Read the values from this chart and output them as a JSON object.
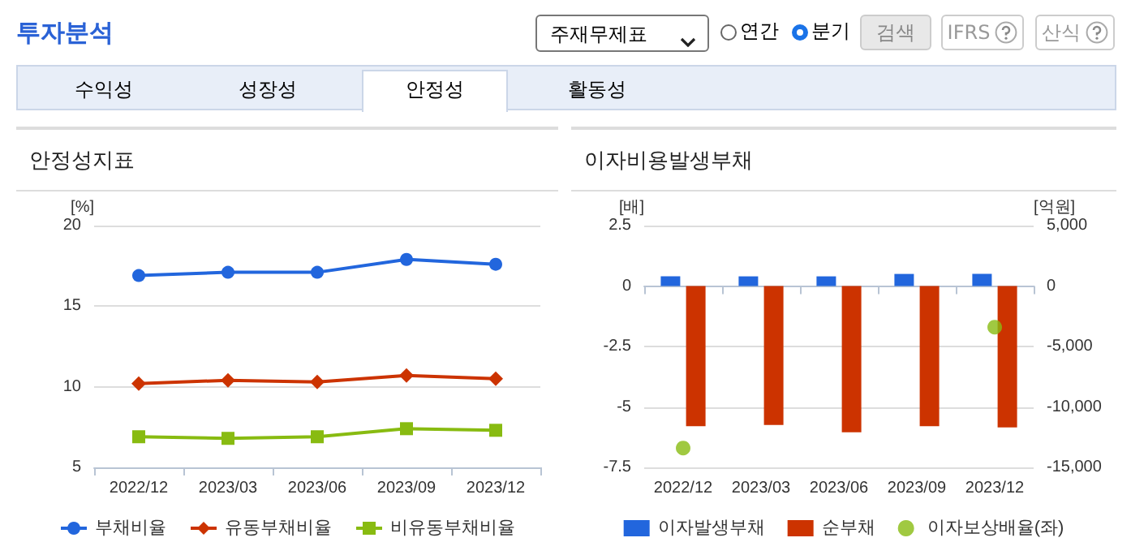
{
  "chart_data": [
    {
      "type": "other",
      "title": "투자분석",
      "annotations": [
        "주재무제표",
        "연간",
        "분기",
        "검색",
        "IFRS",
        "산식",
        "수익성",
        "성장성",
        "안정성",
        "활동성"
      ]
    },
    {
      "type": "line",
      "title": "안정성지표",
      "ylabel": "[%]",
      "categories": [
        "2022/12",
        "2023/03",
        "2023/06",
        "2023/09",
        "2023/12"
      ],
      "ylim": [
        5,
        20
      ],
      "yticks": [
        5,
        10,
        15,
        20
      ],
      "grid": "y",
      "legend": "bottom",
      "series": [
        {
          "name": "부채비율",
          "color": "#2266dd",
          "marker": "circle",
          "values": [
            16.9,
            17.1,
            17.1,
            17.9,
            17.6
          ]
        },
        {
          "name": "유동부채비율",
          "color": "#cc3300",
          "marker": "diamond",
          "values": [
            10.2,
            10.4,
            10.3,
            10.7,
            10.5
          ]
        },
        {
          "name": "비유동부채비율",
          "color": "#88bb11",
          "marker": "square",
          "values": [
            6.9,
            6.8,
            6.9,
            7.4,
            7.3
          ]
        }
      ]
    },
    {
      "type": "bar",
      "title": "이자비용발생부채",
      "ylabel": "[배]",
      "y2label": "[억원]",
      "categories": [
        "2022/12",
        "2023/03",
        "2023/06",
        "2023/09",
        "2023/12"
      ],
      "ylim": [
        -7.5,
        2.5
      ],
      "yticks": [
        -7.5,
        -5,
        -2.5,
        0,
        2.5
      ],
      "y2lim": [
        -15000,
        5000
      ],
      "y2ticks": [
        {
          "value": -15000,
          "label": "-15,000"
        },
        {
          "value": -10000,
          "label": "-10,000"
        },
        {
          "value": -5000,
          "label": "-5,000"
        },
        {
          "value": 0,
          "label": "0"
        },
        {
          "value": 5000,
          "label": "5,000"
        }
      ],
      "grid": "y",
      "legend": "bottom",
      "series": [
        {
          "name": "이자발생부채",
          "color": "#2266dd",
          "axis": "y2",
          "values": [
            800,
            800,
            800,
            1000,
            1000
          ]
        },
        {
          "name": "순부채",
          "color": "#cc3300",
          "axis": "y2",
          "values": [
            -11600,
            -11500,
            -12100,
            -11600,
            -11700
          ]
        },
        {
          "name": "이자보상배율(좌)",
          "type": "scatter",
          "color": "#88bb11",
          "marker": "circle",
          "values": [
            -6.7,
            null,
            null,
            null,
            -1.7
          ]
        }
      ]
    }
  ]
}
